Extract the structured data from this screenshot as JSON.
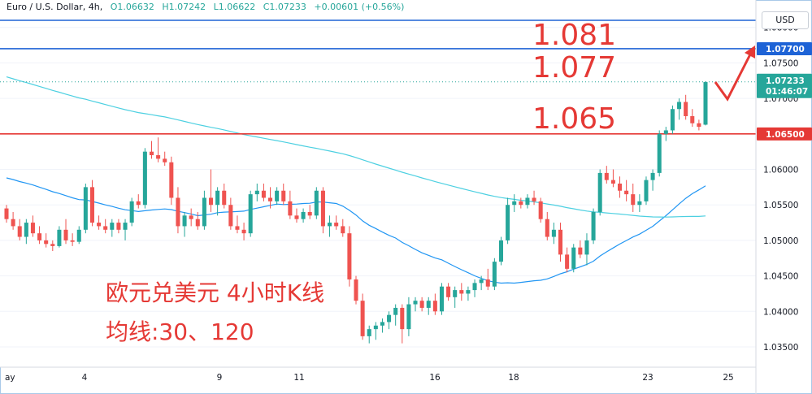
{
  "header": {
    "symbol": "Euro / U.S. Dollar, 4h,",
    "open": "O1.06632",
    "high": "H1.07242",
    "low": "L1.06622",
    "close": "C1.07233",
    "change": "+0.00601 (+0.56%)"
  },
  "currency_button": "USD",
  "annotations": {
    "level_1081": "1.081",
    "level_1077": "1.077",
    "level_1065": "1.065",
    "title_line1": "欧元兑美元 4小时K线",
    "title_line2": "均线:30、120"
  },
  "price_tags": {
    "blue_level": "1.07700",
    "last_price": "1.07233",
    "countdown": "01:46:07",
    "red_level": "1.06500"
  },
  "colors": {
    "up": "#26a69a",
    "down": "#ef5350",
    "ma30": "#2196f3",
    "ma120": "#4dd0e1",
    "hline_blue": "#1e63d6",
    "hline_red": "#e53935",
    "annotation": "#e53935"
  },
  "chart_data": {
    "type": "candlestick",
    "timeframe": "4h",
    "y_axis": {
      "min": 1.03,
      "max": 1.081,
      "ticks": [
        "1.03500",
        "1.04000",
        "1.04500",
        "1.05000",
        "1.05500",
        "1.06000",
        "1.06500",
        "1.07000",
        "1.07500",
        "1.08000"
      ]
    },
    "x_axis": {
      "labels": [
        "ay",
        "4",
        "9",
        "11",
        "16",
        "18",
        "23",
        "25"
      ]
    },
    "horizontal_lines": [
      {
        "price": 1.081,
        "color": "blue"
      },
      {
        "price": 1.077,
        "color": "blue"
      },
      {
        "price": 1.065,
        "color": "red"
      }
    ],
    "last_price": 1.07233,
    "candles": [
      [
        1.0545,
        1.055,
        1.0525,
        1.053
      ],
      [
        1.053,
        1.054,
        1.0515,
        1.052
      ],
      [
        1.052,
        1.053,
        1.05,
        1.0505
      ],
      [
        1.0505,
        1.053,
        1.0495,
        1.0525
      ],
      [
        1.0525,
        1.0535,
        1.0505,
        1.051
      ],
      [
        1.051,
        1.052,
        1.0495,
        1.05
      ],
      [
        1.05,
        1.051,
        1.049,
        1.0495
      ],
      [
        1.0495,
        1.05,
        1.0485,
        1.0492
      ],
      [
        1.0492,
        1.052,
        1.049,
        1.0515
      ],
      [
        1.0515,
        1.053,
        1.0495,
        1.05
      ],
      [
        1.05,
        1.051,
        1.0492,
        1.0498
      ],
      [
        1.0498,
        1.052,
        1.0495,
        1.0515
      ],
      [
        1.0515,
        1.058,
        1.051,
        1.0575
      ],
      [
        1.0575,
        1.0585,
        1.052,
        1.0525
      ],
      [
        1.0525,
        1.0535,
        1.0515,
        1.052
      ],
      [
        1.052,
        1.053,
        1.051,
        1.0515
      ],
      [
        1.0515,
        1.053,
        1.0505,
        1.0525
      ],
      [
        1.0525,
        1.053,
        1.051,
        1.0515
      ],
      [
        1.0515,
        1.053,
        1.05,
        1.0525
      ],
      [
        1.0525,
        1.056,
        1.052,
        1.0555
      ],
      [
        1.0555,
        1.0565,
        1.0545,
        1.055
      ],
      [
        1.055,
        1.063,
        1.0545,
        1.0625
      ],
      [
        1.0625,
        1.064,
        1.0615,
        1.062
      ],
      [
        1.062,
        1.0645,
        1.061,
        1.0615
      ],
      [
        1.0615,
        1.0625,
        1.0605,
        1.061
      ],
      [
        1.061,
        1.0618,
        1.055,
        1.056
      ],
      [
        1.056,
        1.0575,
        1.051,
        1.052
      ],
      [
        1.052,
        1.054,
        1.0505,
        1.0535
      ],
      [
        1.0535,
        1.0545,
        1.052,
        1.053
      ],
      [
        1.053,
        1.054,
        1.0515,
        1.052
      ],
      [
        1.052,
        1.057,
        1.0515,
        1.056
      ],
      [
        1.056,
        1.06,
        1.054,
        1.055
      ],
      [
        1.055,
        1.0575,
        1.0535,
        1.057
      ],
      [
        1.057,
        1.058,
        1.0545,
        1.055
      ],
      [
        1.055,
        1.056,
        1.0515,
        1.052
      ],
      [
        1.052,
        1.0535,
        1.051,
        1.0515
      ],
      [
        1.0515,
        1.0525,
        1.05,
        1.051
      ],
      [
        1.051,
        1.057,
        1.0505,
        1.0565
      ],
      [
        1.0565,
        1.058,
        1.0555,
        1.057
      ],
      [
        1.057,
        1.058,
        1.0555,
        1.056
      ],
      [
        1.056,
        1.0575,
        1.0545,
        1.0555
      ],
      [
        1.0555,
        1.0575,
        1.055,
        1.057
      ],
      [
        1.057,
        1.058,
        1.055,
        1.0555
      ],
      [
        1.0555,
        1.057,
        1.053,
        1.0535
      ],
      [
        1.0535,
        1.0545,
        1.0525,
        1.053
      ],
      [
        1.053,
        1.0545,
        1.0525,
        1.054
      ],
      [
        1.054,
        1.055,
        1.053,
        1.0535
      ],
      [
        1.0535,
        1.0575,
        1.053,
        1.057
      ],
      [
        1.057,
        1.0575,
        1.051,
        1.052
      ],
      [
        1.052,
        1.0535,
        1.0505,
        1.0525
      ],
      [
        1.0525,
        1.0535,
        1.0515,
        1.052
      ],
      [
        1.052,
        1.053,
        1.0505,
        1.051
      ],
      [
        1.051,
        1.052,
        1.0435,
        1.0445
      ],
      [
        1.0445,
        1.045,
        1.041,
        1.0415
      ],
      [
        1.0415,
        1.0425,
        1.036,
        1.0365
      ],
      [
        1.0365,
        1.038,
        1.0355,
        1.0375
      ],
      [
        1.0375,
        1.0385,
        1.036,
        1.038
      ],
      [
        1.038,
        1.039,
        1.037,
        1.0385
      ],
      [
        1.0385,
        1.04,
        1.0375,
        1.0395
      ],
      [
        1.0395,
        1.041,
        1.038,
        1.0405
      ],
      [
        1.0405,
        1.041,
        1.0355,
        1.0375
      ],
      [
        1.0375,
        1.042,
        1.0365,
        1.041
      ],
      [
        1.041,
        1.042,
        1.04,
        1.0415
      ],
      [
        1.0415,
        1.042,
        1.04,
        1.0405
      ],
      [
        1.0405,
        1.042,
        1.0395,
        1.0415
      ],
      [
        1.0415,
        1.0425,
        1.0395,
        1.04
      ],
      [
        1.04,
        1.044,
        1.0395,
        1.0435
      ],
      [
        1.0435,
        1.044,
        1.0415,
        1.042
      ],
      [
        1.042,
        1.0435,
        1.0405,
        1.043
      ],
      [
        1.043,
        1.044,
        1.0415,
        1.0425
      ],
      [
        1.0425,
        1.0435,
        1.0415,
        1.043
      ],
      [
        1.043,
        1.0445,
        1.042,
        1.044
      ],
      [
        1.044,
        1.045,
        1.043,
        1.0445
      ],
      [
        1.0445,
        1.046,
        1.043,
        1.0435
      ],
      [
        1.0435,
        1.0475,
        1.043,
        1.047
      ],
      [
        1.047,
        1.0505,
        1.0465,
        1.05
      ],
      [
        1.05,
        1.056,
        1.0495,
        1.055
      ],
      [
        1.055,
        1.0565,
        1.054,
        1.0555
      ],
      [
        1.0555,
        1.056,
        1.0545,
        1.055
      ],
      [
        1.055,
        1.0565,
        1.0545,
        1.056
      ],
      [
        1.056,
        1.057,
        1.055,
        1.0555
      ],
      [
        1.0555,
        1.056,
        1.0525,
        1.053
      ],
      [
        1.053,
        1.054,
        1.05,
        1.0505
      ],
      [
        1.0505,
        1.0525,
        1.0495,
        1.0515
      ],
      [
        1.0515,
        1.0525,
        1.047,
        1.048
      ],
      [
        1.048,
        1.049,
        1.0455,
        1.046
      ],
      [
        1.046,
        1.0495,
        1.0455,
        1.049
      ],
      [
        1.049,
        1.05,
        1.0475,
        1.048
      ],
      [
        1.048,
        1.051,
        1.0465,
        1.05
      ],
      [
        1.05,
        1.0545,
        1.0495,
        1.054
      ],
      [
        1.054,
        1.06,
        1.0535,
        1.0595
      ],
      [
        1.0595,
        1.0605,
        1.058,
        1.0585
      ],
      [
        1.0585,
        1.06,
        1.0575,
        1.058
      ],
      [
        1.058,
        1.059,
        1.056,
        1.057
      ],
      [
        1.057,
        1.0585,
        1.0555,
        1.0565
      ],
      [
        1.0565,
        1.058,
        1.054,
        1.055
      ],
      [
        1.055,
        1.0565,
        1.054,
        1.0555
      ],
      [
        1.0555,
        1.059,
        1.055,
        1.0585
      ],
      [
        1.0585,
        1.06,
        1.057,
        1.0595
      ],
      [
        1.0595,
        1.0655,
        1.059,
        1.065
      ],
      [
        1.065,
        1.066,
        1.064,
        1.0655
      ],
      [
        1.0655,
        1.069,
        1.065,
        1.0685
      ],
      [
        1.0685,
        1.07,
        1.067,
        1.0695
      ],
      [
        1.0695,
        1.0705,
        1.067,
        1.0675
      ],
      [
        1.0675,
        1.0685,
        1.066,
        1.0665
      ],
      [
        1.0665,
        1.067,
        1.0655,
        1.066
      ],
      [
        1.0663,
        1.0724,
        1.0662,
        1.0723
      ]
    ],
    "moving_averages": [
      {
        "period": 30,
        "color": "#2196f3"
      },
      {
        "period": 120,
        "color": "#4dd0e1"
      }
    ]
  }
}
